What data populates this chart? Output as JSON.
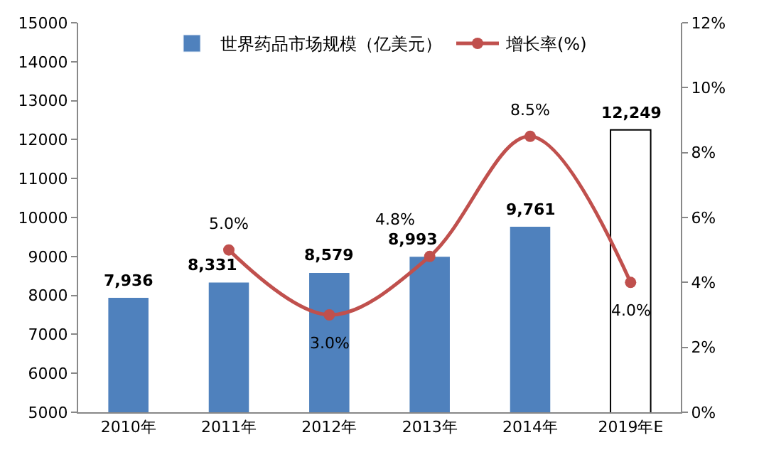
{
  "chart_data": {
    "type": "bar",
    "categories": [
      "2010年",
      "2011年",
      "2012年",
      "2013年",
      "2014年",
      "2019年E"
    ],
    "series": [
      {
        "name": "世界药品市场规模（亿美元）",
        "colors": [
          "#4f81bd",
          "#4f81bd",
          "#4f81bd",
          "#4f81bd",
          "#4f81bd",
          "#ffffff"
        ],
        "values": [
          7936,
          8331,
          8579,
          8993,
          9761,
          12249
        ],
        "value_labels": [
          "7,936",
          "8,331",
          "8,579",
          "8,993",
          "9,761",
          "12,249"
        ]
      },
      {
        "name": "增长率(%)",
        "type": "line",
        "axis": "y2",
        "color": "#c0504d",
        "marker": "circle",
        "values": [
          null,
          5.0,
          3.0,
          4.8,
          8.5,
          4.0
        ],
        "value_labels": [
          null,
          "5.0%",
          "3.0%",
          "4.8%",
          "8.5%",
          "4.0%"
        ]
      }
    ],
    "ylim": [
      5000,
      15000
    ],
    "yticks": [
      5000,
      6000,
      7000,
      8000,
      9000,
      10000,
      11000,
      12000,
      13000,
      14000,
      15000
    ],
    "y2lim": [
      0,
      12
    ],
    "y2ticks": [
      {
        "value": 0,
        "label": "0%"
      },
      {
        "value": 2,
        "label": "2%"
      },
      {
        "value": 4,
        "label": "4%"
      },
      {
        "value": 6,
        "label": "6%"
      },
      {
        "value": 8,
        "label": "8%"
      },
      {
        "value": 10,
        "label": "10%"
      },
      {
        "value": 12,
        "label": "12%"
      }
    ],
    "legend": "top"
  }
}
